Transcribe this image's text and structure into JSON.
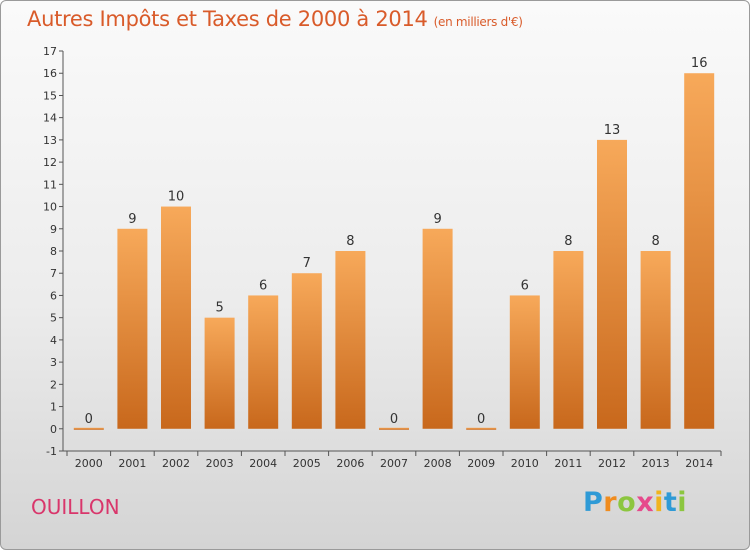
{
  "chart_data": {
    "type": "bar",
    "title": "Autres Impôts et Taxes de 2000 à 2014",
    "subtitle": "(en milliers d'€)",
    "categories": [
      "2000",
      "2001",
      "2002",
      "2003",
      "2004",
      "2005",
      "2006",
      "2007",
      "2008",
      "2009",
      "2010",
      "2011",
      "2012",
      "2013",
      "2014"
    ],
    "values": [
      0,
      9,
      10,
      5,
      6,
      7,
      8,
      0,
      9,
      0,
      6,
      8,
      13,
      8,
      16
    ],
    "ylim": [
      -1,
      17
    ],
    "yticks": [
      "-1",
      "0",
      "1",
      "2",
      "3",
      "4",
      "5",
      "6",
      "7",
      "8",
      "9",
      "10",
      "11",
      "12",
      "13",
      "14",
      "15",
      "16",
      "17"
    ],
    "grid": false,
    "bar_color": "#f0913a",
    "bar_color_light": "#f7a95a",
    "bar_color_dark": "#c8681c"
  },
  "place_name": "OUILLON",
  "logo": {
    "letters": [
      "P",
      "r",
      "o",
      "x",
      "i",
      "t",
      "i"
    ],
    "colors": [
      "#2e9ad6",
      "#f08c1e",
      "#8cc63f",
      "#e64a8c",
      "#f0b41e",
      "#2e9ad6",
      "#8cc63f"
    ]
  },
  "colors": {
    "title": "#d95b2a",
    "place": "#d9366b"
  }
}
